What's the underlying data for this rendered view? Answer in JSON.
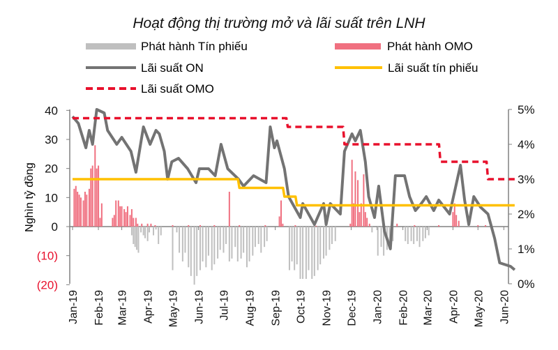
{
  "chart_data": {
    "type": "bar+line",
    "title": "Hoạt động thị trường mở và lãi suất trên LNH",
    "ylabel": "Nghìn tỷ đồng",
    "ylim": [
      -20,
      40
    ],
    "y2lim": [
      0,
      5
    ],
    "yticks": [
      "40",
      "30",
      "20",
      "10",
      "0",
      "(10)",
      "(20)"
    ],
    "y2ticks": [
      "5%",
      "4%",
      "3%",
      "2%",
      "1%",
      "0%"
    ],
    "xticks": [
      "Jan-19",
      "Feb-19",
      "Mar-19",
      "Apr-19",
      "May-19",
      "Jun-19",
      "Jul-19",
      "Aug-19",
      "Sep-19",
      "Oct-19",
      "Nov-19",
      "Dec-19",
      "Jan-20",
      "Feb-20",
      "Mar-20",
      "Apr-20",
      "May-20",
      "Jun-20"
    ],
    "xtick_dates": [
      "2019-01-01",
      "2019-02-01",
      "2019-03-01",
      "2019-04-01",
      "2019-05-01",
      "2019-06-01",
      "2019-07-01",
      "2019-08-01",
      "2019-09-01",
      "2019-10-01",
      "2019-11-01",
      "2019-12-01",
      "2020-01-01",
      "2020-02-01",
      "2020-03-01",
      "2020-04-01",
      "2020-05-01",
      "2020-06-01"
    ],
    "legend": [
      {
        "name": "Phát hành Tín phiếu",
        "color": "#bfbfbf",
        "kind": "bar"
      },
      {
        "name": "Phát hành OMO",
        "color": "#f07080",
        "kind": "bar"
      },
      {
        "name": "Lãi suất ON",
        "color": "#737373",
        "kind": "line"
      },
      {
        "name": "Lãi suất tín phiếu",
        "color": "#ffc000",
        "kind": "line"
      },
      {
        "name": "Lãi suất OMO",
        "color": "#e8102c",
        "kind": "dash"
      }
    ],
    "series": [
      {
        "name": "Phát hành OMO",
        "axis": "left",
        "type": "bar",
        "color": "#f07080",
        "points": [
          [
            "2019-01-03",
            13
          ],
          [
            "2019-01-05",
            14
          ],
          [
            "2019-01-07",
            12
          ],
          [
            "2019-01-09",
            11
          ],
          [
            "2019-01-11",
            10
          ],
          [
            "2019-01-14",
            9
          ],
          [
            "2019-01-16",
            12
          ],
          [
            "2019-01-18",
            11
          ],
          [
            "2019-01-21",
            13
          ],
          [
            "2019-01-23",
            20
          ],
          [
            "2019-01-25",
            21
          ],
          [
            "2019-01-28",
            28
          ],
          [
            "2019-01-30",
            20
          ],
          [
            "2019-02-01",
            21
          ],
          [
            "2019-02-03",
            3
          ],
          [
            "2019-02-05",
            8
          ],
          [
            "2019-02-18",
            3
          ],
          [
            "2019-02-20",
            4
          ],
          [
            "2019-02-22",
            9
          ],
          [
            "2019-02-25",
            9
          ],
          [
            "2019-02-27",
            7
          ],
          [
            "2019-03-01",
            7
          ],
          [
            "2019-03-04",
            6
          ],
          [
            "2019-03-06",
            5
          ],
          [
            "2019-03-08",
            7
          ],
          [
            "2019-03-11",
            4
          ],
          [
            "2019-03-13",
            6
          ],
          [
            "2019-03-15",
            3
          ],
          [
            "2019-03-18",
            3
          ],
          [
            "2019-03-20",
            1
          ],
          [
            "2019-03-25",
            1
          ],
          [
            "2019-04-01",
            1
          ],
          [
            "2019-04-05",
            1
          ],
          [
            "2019-04-10",
            0.5
          ],
          [
            "2019-05-01",
            0.5
          ],
          [
            "2019-05-20",
            0.5
          ],
          [
            "2019-06-03",
            0.5
          ],
          [
            "2019-06-20",
            0.5
          ],
          [
            "2019-07-08",
            12
          ],
          [
            "2019-07-20",
            0.5
          ],
          [
            "2019-08-20",
            0.5
          ],
          [
            "2019-09-06",
            3.5
          ],
          [
            "2019-09-08",
            9
          ],
          [
            "2019-09-10",
            1
          ],
          [
            "2019-09-25",
            0.5
          ],
          [
            "2019-10-20",
            0.3
          ],
          [
            "2019-11-30",
            1
          ],
          [
            "2019-12-02",
            23
          ],
          [
            "2019-12-04",
            8
          ],
          [
            "2019-12-06",
            19
          ],
          [
            "2019-12-09",
            16
          ],
          [
            "2019-12-11",
            5
          ],
          [
            "2019-12-13",
            8
          ],
          [
            "2019-12-16",
            18
          ],
          [
            "2019-12-18",
            5
          ],
          [
            "2019-12-20",
            3
          ],
          [
            "2019-12-23",
            1
          ],
          [
            "2020-01-25",
            1
          ],
          [
            "2020-02-15",
            0.5
          ],
          [
            "2020-03-15",
            0.5
          ],
          [
            "2020-04-01",
            5
          ],
          [
            "2020-04-03",
            8
          ],
          [
            "2020-04-05",
            4
          ],
          [
            "2020-04-08",
            2
          ],
          [
            "2020-05-01",
            0.5
          ],
          [
            "2020-05-10",
            0.5
          ]
        ]
      },
      {
        "name": "Phát hành Tín phiếu",
        "axis": "left",
        "type": "bar",
        "color": "#bfbfbf",
        "points": [
          [
            "2019-03-13",
            -3
          ],
          [
            "2019-03-15",
            -6
          ],
          [
            "2019-03-17",
            -7
          ],
          [
            "2019-03-19",
            -8
          ],
          [
            "2019-03-21",
            -9
          ],
          [
            "2019-03-24",
            -2
          ],
          [
            "2019-03-27",
            -3
          ],
          [
            "2019-03-29",
            -4
          ],
          [
            "2019-04-01",
            -5
          ],
          [
            "2019-04-03",
            -2
          ],
          [
            "2019-04-08",
            -3
          ],
          [
            "2019-04-11",
            -1
          ],
          [
            "2019-04-14",
            -6
          ],
          [
            "2019-04-17",
            -3
          ],
          [
            "2019-05-01",
            -15
          ],
          [
            "2019-05-06",
            -2
          ],
          [
            "2019-05-09",
            -9
          ],
          [
            "2019-05-13",
            -12
          ],
          [
            "2019-05-16",
            -9
          ],
          [
            "2019-05-20",
            -14
          ],
          [
            "2019-05-23",
            -17
          ],
          [
            "2019-05-27",
            -20
          ],
          [
            "2019-05-30",
            -17
          ],
          [
            "2019-06-03",
            -15
          ],
          [
            "2019-06-06",
            -12
          ],
          [
            "2019-06-10",
            -14
          ],
          [
            "2019-06-13",
            -10
          ],
          [
            "2019-06-17",
            -15
          ],
          [
            "2019-06-20",
            -13
          ],
          [
            "2019-06-24",
            -11
          ],
          [
            "2019-06-27",
            -8
          ],
          [
            "2019-07-01",
            -9
          ],
          [
            "2019-07-04",
            -6
          ],
          [
            "2019-07-08",
            -12
          ],
          [
            "2019-07-11",
            -11
          ],
          [
            "2019-07-15",
            -7
          ],
          [
            "2019-07-18",
            -12
          ],
          [
            "2019-07-22",
            -11
          ],
          [
            "2019-07-25",
            -9
          ],
          [
            "2019-07-29",
            -14
          ],
          [
            "2019-08-01",
            -12
          ],
          [
            "2019-08-05",
            -10
          ],
          [
            "2019-08-08",
            -7
          ],
          [
            "2019-08-12",
            -6
          ],
          [
            "2019-08-15",
            -9
          ],
          [
            "2019-08-19",
            -7
          ],
          [
            "2019-08-22",
            -5
          ],
          [
            "2019-09-18",
            -15
          ],
          [
            "2019-09-21",
            -12
          ],
          [
            "2019-09-24",
            -15
          ],
          [
            "2019-09-27",
            -13
          ],
          [
            "2019-10-01",
            -18
          ],
          [
            "2019-10-04",
            -18
          ],
          [
            "2019-10-08",
            -18
          ],
          [
            "2019-10-11",
            -15
          ],
          [
            "2019-10-15",
            -18
          ],
          [
            "2019-10-18",
            -17
          ],
          [
            "2019-10-22",
            -15
          ],
          [
            "2019-10-25",
            -13
          ],
          [
            "2019-10-29",
            -11
          ],
          [
            "2019-11-01",
            -10
          ],
          [
            "2019-11-05",
            -8
          ],
          [
            "2019-11-08",
            -6
          ],
          [
            "2019-11-12",
            -5
          ],
          [
            "2019-12-26",
            -2
          ],
          [
            "2020-01-02",
            -10
          ],
          [
            "2020-01-06",
            -7
          ],
          [
            "2020-01-09",
            -10
          ],
          [
            "2020-01-13",
            -8
          ],
          [
            "2020-01-16",
            -6
          ],
          [
            "2020-01-20",
            -5
          ],
          [
            "2020-02-04",
            -5
          ],
          [
            "2020-02-07",
            -6
          ],
          [
            "2020-02-11",
            -5
          ],
          [
            "2020-02-14",
            -6
          ],
          [
            "2020-02-18",
            -5
          ],
          [
            "2020-02-21",
            -7
          ],
          [
            "2020-02-25",
            -5
          ],
          [
            "2020-02-28",
            -4
          ],
          [
            "2020-03-03",
            -3
          ]
        ]
      },
      {
        "name": "Lãi suất ON",
        "axis": "right",
        "type": "line",
        "color": "#737373",
        "points": [
          [
            "2019-01-01",
            4.8
          ],
          [
            "2019-01-08",
            4.6
          ],
          [
            "2019-01-17",
            3.9
          ],
          [
            "2019-01-21",
            4.4
          ],
          [
            "2019-01-25",
            4.0
          ],
          [
            "2019-01-30",
            5.0
          ],
          [
            "2019-02-08",
            4.9
          ],
          [
            "2019-02-12",
            4.4
          ],
          [
            "2019-02-23",
            4.0
          ],
          [
            "2019-03-01",
            4.2
          ],
          [
            "2019-03-12",
            3.8
          ],
          [
            "2019-03-18",
            3.2
          ],
          [
            "2019-03-27",
            4.5
          ],
          [
            "2019-04-04",
            4.0
          ],
          [
            "2019-04-11",
            4.4
          ],
          [
            "2019-04-15",
            4.3
          ],
          [
            "2019-04-21",
            3.8
          ],
          [
            "2019-04-25",
            3.0
          ],
          [
            "2019-04-30",
            3.5
          ],
          [
            "2019-05-08",
            3.6
          ],
          [
            "2019-05-19",
            3.3
          ],
          [
            "2019-05-29",
            2.9
          ],
          [
            "2019-06-02",
            3.3
          ],
          [
            "2019-06-13",
            3.3
          ],
          [
            "2019-06-21",
            3.1
          ],
          [
            "2019-06-28",
            4.0
          ],
          [
            "2019-07-06",
            3.3
          ],
          [
            "2019-07-19",
            3.0
          ],
          [
            "2019-07-25",
            2.8
          ],
          [
            "2019-08-06",
            3.1
          ],
          [
            "2019-08-21",
            2.9
          ],
          [
            "2019-08-26",
            4.5
          ],
          [
            "2019-08-31",
            3.9
          ],
          [
            "2019-09-03",
            4.1
          ],
          [
            "2019-09-12",
            3.3
          ],
          [
            "2019-09-17",
            2.5
          ],
          [
            "2019-10-01",
            1.9
          ],
          [
            "2019-10-04",
            2.3
          ],
          [
            "2019-10-18",
            1.7
          ],
          [
            "2019-10-29",
            2.3
          ],
          [
            "2019-11-01",
            1.7
          ],
          [
            "2019-11-06",
            2.3
          ],
          [
            "2019-11-18",
            2.0
          ],
          [
            "2019-11-23",
            3.8
          ],
          [
            "2019-12-02",
            4.3
          ],
          [
            "2019-12-06",
            4.1
          ],
          [
            "2019-12-12",
            4.4
          ],
          [
            "2019-12-18",
            3.5
          ],
          [
            "2019-12-22",
            2.5
          ],
          [
            "2019-12-29",
            1.9
          ],
          [
            "2020-01-03",
            2.8
          ],
          [
            "2020-01-10",
            1.5
          ],
          [
            "2020-01-17",
            1.0
          ],
          [
            "2020-01-23",
            3.1
          ],
          [
            "2020-02-03",
            3.1
          ],
          [
            "2020-02-09",
            2.5
          ],
          [
            "2020-02-16",
            2.1
          ],
          [
            "2020-02-23",
            2.3
          ],
          [
            "2020-02-29",
            2.5
          ],
          [
            "2020-03-09",
            2.1
          ],
          [
            "2020-03-15",
            2.4
          ],
          [
            "2020-03-28",
            2.0
          ],
          [
            "2020-04-10",
            3.4
          ],
          [
            "2020-04-15",
            2.4
          ],
          [
            "2020-04-20",
            1.7
          ],
          [
            "2020-04-26",
            2.5
          ],
          [
            "2020-05-04",
            2.2
          ],
          [
            "2020-05-13",
            2.0
          ],
          [
            "2020-05-21",
            1.3
          ],
          [
            "2020-05-27",
            0.6
          ],
          [
            "2020-06-09",
            0.5
          ],
          [
            "2020-06-14",
            0.4
          ]
        ]
      },
      {
        "name": "Lãi suất tín phiếu",
        "axis": "right",
        "type": "step",
        "color": "#ffc000",
        "points": [
          [
            "2019-01-01",
            3.0
          ],
          [
            "2019-07-20",
            2.75
          ],
          [
            "2019-09-12",
            2.5
          ],
          [
            "2019-09-27",
            2.25
          ],
          [
            "2020-06-14",
            2.25
          ]
        ]
      },
      {
        "name": "Lãi suất OMO",
        "axis": "right",
        "type": "step",
        "color": "#e8102c",
        "points": [
          [
            "2019-01-01",
            4.75
          ],
          [
            "2019-09-16",
            4.5
          ],
          [
            "2019-11-23",
            4.0
          ],
          [
            "2020-03-17",
            3.5
          ],
          [
            "2020-05-13",
            3.0
          ],
          [
            "2020-06-14",
            3.0
          ]
        ]
      }
    ]
  }
}
